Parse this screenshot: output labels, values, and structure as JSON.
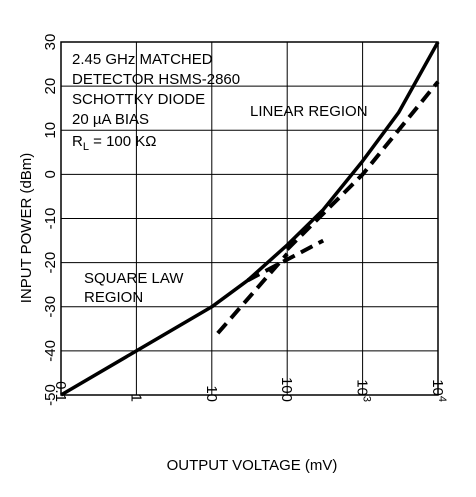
{
  "chart_data": {
    "type": "line",
    "xlabel": "OUTPUT VOLTAGE (mV)",
    "ylabel": "INPUT POWER (dBm)",
    "x_scale": "log",
    "xlim": [
      0.1,
      10000
    ],
    "ylim": [
      -50,
      30
    ],
    "x_ticks": [
      {
        "value": 0.1,
        "label": "0.1"
      },
      {
        "value": 1,
        "label": "1"
      },
      {
        "value": 10,
        "label": "10"
      },
      {
        "value": 100,
        "label": "100"
      },
      {
        "value": 1000,
        "label": "10",
        "exp": "3"
      },
      {
        "value": 10000,
        "label": "10",
        "exp": "4"
      }
    ],
    "y_ticks": [
      {
        "value": -50,
        "label": "-50"
      },
      {
        "value": -40,
        "label": "-40"
      },
      {
        "value": -30,
        "label": "-30"
      },
      {
        "value": -20,
        "label": "-20"
      },
      {
        "value": -10,
        "label": "-10"
      },
      {
        "value": 0,
        "label": "0"
      },
      {
        "value": 10,
        "label": "10"
      },
      {
        "value": 20,
        "label": "20"
      },
      {
        "value": 30,
        "label": "30"
      }
    ],
    "grid": true,
    "series": [
      {
        "style": "solid",
        "x": [
          0.1,
          1,
          10,
          30,
          100,
          300,
          1000,
          3000,
          10000
        ],
        "y": [
          -50,
          -40,
          -30,
          -24,
          -16,
          -8,
          3,
          14,
          30
        ]
      },
      {
        "style": "dashed",
        "x": [
          30,
          300
        ],
        "y": [
          -24,
          -15
        ]
      },
      {
        "style": "dashed",
        "x": [
          12,
          100
        ],
        "y": [
          -36,
          -18
        ]
      },
      {
        "style": "dashed",
        "x": [
          100,
          1000,
          10000
        ],
        "y": [
          -17,
          0,
          21
        ]
      }
    ],
    "annotations": {
      "info_box": [
        "2.45 GHz MATCHED",
        "DETECTOR HSMS-2860",
        "SCHOTTKY DIODE",
        "20 µA BIAS"
      ],
      "load_prefix": "R",
      "load_sub": "L",
      "load_value": " = 100 KΩ",
      "linear_region": "LINEAR REGION",
      "square_law_line1": "SQUARE LAW",
      "square_law_line2": "REGION"
    }
  }
}
